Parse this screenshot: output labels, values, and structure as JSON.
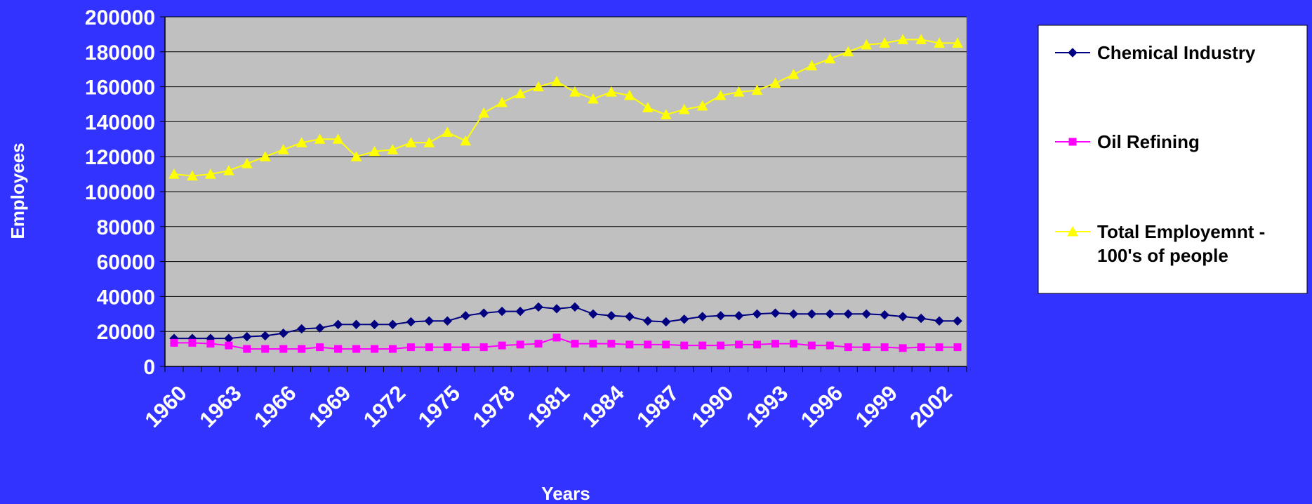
{
  "chart_data": {
    "type": "line",
    "title": "",
    "xlabel": "Years",
    "ylabel": "Employees",
    "ylim": [
      0,
      200000
    ],
    "yticks": [
      0,
      20000,
      40000,
      60000,
      80000,
      100000,
      120000,
      140000,
      160000,
      180000,
      200000
    ],
    "x_tick_labels": [
      "1960",
      "1963",
      "1966",
      "1969",
      "1972",
      "1975",
      "1978",
      "1981",
      "1984",
      "1987",
      "1990",
      "1993",
      "1996",
      "1999",
      "2002"
    ],
    "grid": "horizontal",
    "legend_position": "right",
    "x": [
      1960,
      1961,
      1962,
      1963,
      1964,
      1965,
      1966,
      1967,
      1968,
      1969,
      1970,
      1971,
      1972,
      1973,
      1974,
      1975,
      1976,
      1977,
      1978,
      1979,
      1980,
      1981,
      1982,
      1983,
      1984,
      1985,
      1986,
      1987,
      1988,
      1989,
      1990,
      1991,
      1992,
      1993,
      1994,
      1995,
      1996,
      1997,
      1998,
      1999,
      2000,
      2001,
      2002,
      2003
    ],
    "series": [
      {
        "name": "Chemical Industry",
        "color": "#000080",
        "marker": "diamond",
        "values": [
          16000,
          16000,
          16000,
          16000,
          17000,
          17500,
          19000,
          21500,
          22000,
          24000,
          24000,
          24000,
          24000,
          25500,
          26000,
          26000,
          29000,
          30500,
          31500,
          31500,
          34000,
          33000,
          34000,
          30000,
          29000,
          28500,
          26000,
          25500,
          27000,
          28500,
          29000,
          29000,
          30000,
          30500,
          30000,
          30000,
          30000,
          30000,
          30000,
          29500,
          28500,
          27500,
          26000,
          26000
        ]
      },
      {
        "name": "Oil Refining",
        "color": "#ff00ff",
        "marker": "square",
        "values": [
          13500,
          13500,
          13000,
          12000,
          10000,
          10000,
          10000,
          10000,
          11000,
          10000,
          10000,
          10000,
          10000,
          11000,
          11000,
          11000,
          11000,
          11000,
          12000,
          12500,
          13000,
          16500,
          13000,
          13000,
          13000,
          12500,
          12500,
          12500,
          12000,
          12000,
          12000,
          12500,
          12500,
          13000,
          13000,
          12000,
          12000,
          11000,
          11000,
          11000,
          10500,
          11000,
          11000,
          11000
        ]
      },
      {
        "name": "Total Employemnt - 100's of people",
        "color": "#ffff00",
        "marker": "triangle",
        "values": [
          110000,
          109000,
          110000,
          112000,
          116000,
          120000,
          124000,
          128000,
          130000,
          130000,
          120000,
          123000,
          124000,
          128000,
          128000,
          134000,
          129000,
          145000,
          151000,
          156000,
          160000,
          163000,
          157000,
          153000,
          157000,
          155000,
          148000,
          144000,
          147000,
          149000,
          155000,
          157000,
          158000,
          162000,
          167000,
          172000,
          176000,
          180000,
          184000,
          185000,
          187000,
          187000,
          185000,
          185000
        ]
      }
    ]
  }
}
